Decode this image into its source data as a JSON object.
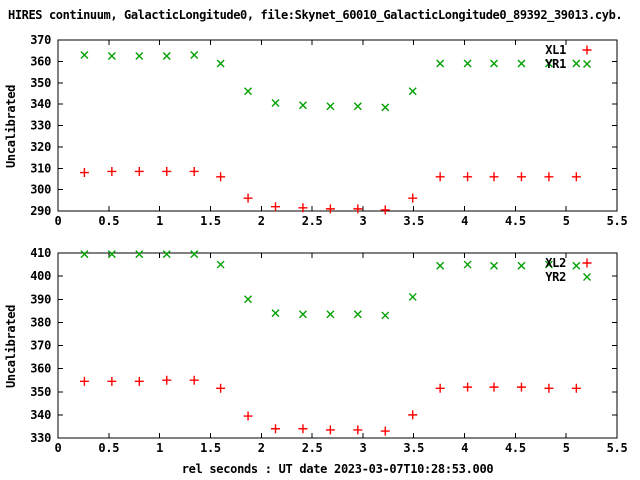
{
  "title": "HIRES continuum, GalacticLongitude0, file:Skynet_60010_GalacticLongitude0_89392_39013.cyb.",
  "xlabel": "rel seconds : UT date 2023-03-07T10:28:53.000",
  "colors": {
    "background": "#ffffff",
    "frame": "#000000",
    "text": "#000000",
    "xl_series": "#ff0000",
    "yr_series": "#00a000"
  },
  "chart_data": [
    {
      "type": "scatter",
      "title": "",
      "xlabel": "",
      "ylabel": "Uncalibrated",
      "xlim": [
        0,
        5.5
      ],
      "ylim": [
        290,
        370
      ],
      "grid": false,
      "legend_position": "top-right",
      "xtick_labels": [
        "0",
        "0.5",
        "1",
        "1.5",
        "2",
        "2.5",
        "3",
        "3.5",
        "4",
        "4.5",
        "5",
        "5.5"
      ],
      "ytick_labels": [
        "290",
        "300",
        "310",
        "320",
        "330",
        "340",
        "350",
        "360",
        "370"
      ],
      "x": [
        0.26,
        0.53,
        0.8,
        1.07,
        1.34,
        1.6,
        1.87,
        2.14,
        2.41,
        2.68,
        2.95,
        3.22,
        3.49,
        3.76,
        4.03,
        4.29,
        4.56,
        4.83,
        5.1
      ],
      "series": [
        {
          "name": "XL1",
          "marker": "plus",
          "color": "#ff0000",
          "values": [
            308,
            308.5,
            308.5,
            308.5,
            308.5,
            306,
            296,
            292,
            291.5,
            291,
            291,
            290.5,
            296,
            306,
            306,
            306,
            306,
            306,
            306
          ]
        },
        {
          "name": "YR1",
          "marker": "cross",
          "color": "#00a000",
          "values": [
            363,
            362.5,
            362.5,
            362.5,
            363,
            359,
            346,
            340.5,
            339.5,
            339,
            339,
            338.5,
            346,
            359,
            359,
            359,
            359,
            359,
            359
          ]
        }
      ]
    },
    {
      "type": "scatter",
      "title": "",
      "xlabel": "rel seconds : UT date 2023-03-07T10:28:53.000",
      "ylabel": "Uncalibrated",
      "xlim": [
        0,
        5.5
      ],
      "ylim": [
        330,
        410
      ],
      "grid": false,
      "legend_position": "top-right",
      "xtick_labels": [
        "0",
        "0.5",
        "1",
        "1.5",
        "2",
        "2.5",
        "3",
        "3.5",
        "4",
        "4.5",
        "5",
        "5.5"
      ],
      "ytick_labels": [
        "330",
        "340",
        "350",
        "360",
        "370",
        "380",
        "390",
        "400",
        "410"
      ],
      "x": [
        0.26,
        0.53,
        0.8,
        1.07,
        1.34,
        1.6,
        1.87,
        2.14,
        2.41,
        2.68,
        2.95,
        3.22,
        3.49,
        3.76,
        4.03,
        4.29,
        4.56,
        4.83,
        5.1
      ],
      "series": [
        {
          "name": "XL2",
          "marker": "plus",
          "color": "#ff0000",
          "values": [
            354.5,
            354.5,
            354.5,
            355,
            355,
            351.5,
            339.5,
            334,
            334,
            333.5,
            333.5,
            333,
            340,
            351.5,
            352,
            352,
            352,
            351.5,
            351.5
          ]
        },
        {
          "name": "YR2",
          "marker": "cross",
          "color": "#00a000",
          "values": [
            409.5,
            409.5,
            409.5,
            409.5,
            409.5,
            405,
            390,
            384,
            383.5,
            383.5,
            383.5,
            383,
            391,
            404.5,
            405,
            404.5,
            404.5,
            405,
            404.5
          ]
        }
      ]
    }
  ]
}
